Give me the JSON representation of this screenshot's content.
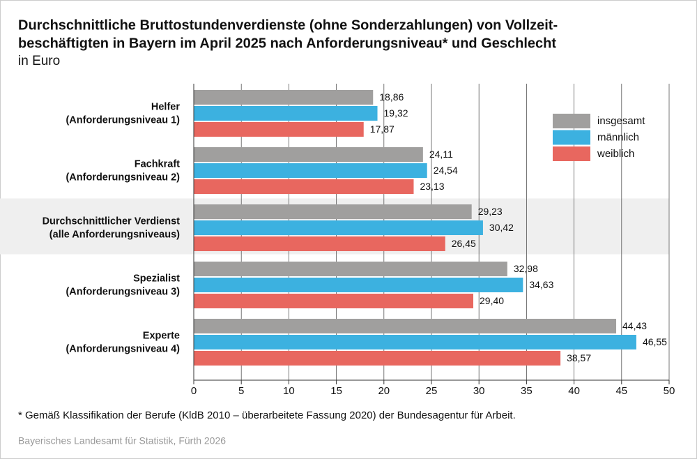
{
  "chart_data": {
    "type": "bar",
    "orientation": "horizontal",
    "title": [
      "Durchschnittliche Bruttostundenverdienste (ohne Sonderzahlungen) von Vollzeit-",
      "beschäftigten in Bayern im April 2025 nach Anforderungsniveau* und Geschlecht"
    ],
    "subtitle": "in Euro",
    "categories": [
      [
        "Helfer",
        "(Anforderungsniveau 1)"
      ],
      [
        "Fachkraft",
        "(Anforderungsniveau 2)"
      ],
      [
        "Durchschnittlicher Verdienst",
        "(alle Anforderungsniveaus)"
      ],
      [
        "Spezialist",
        "(Anforderungsniveau 3)"
      ],
      [
        "Experte",
        "(Anforderungsniveau 4)"
      ]
    ],
    "series": [
      {
        "name": "insgesamt",
        "color": "#a09f9e",
        "values": [
          18.86,
          24.11,
          29.23,
          32.98,
          44.43
        ],
        "value_labels": [
          "18,86",
          "24,11",
          "29,23",
          "32,98",
          "44,43"
        ]
      },
      {
        "name": "männlich",
        "color": "#3cb1e0",
        "values": [
          19.32,
          24.54,
          30.42,
          34.63,
          46.55
        ],
        "value_labels": [
          "19,32",
          "24,54",
          "30,42",
          "34,63",
          "46,55"
        ]
      },
      {
        "name": "weiblich",
        "color": "#e8675f",
        "values": [
          17.87,
          23.13,
          26.45,
          29.4,
          38.57
        ],
        "value_labels": [
          "17,87",
          "23,13",
          "26,45",
          "29,40",
          "38,57"
        ]
      }
    ],
    "xlim": [
      0,
      50
    ],
    "xticks": [
      0,
      5,
      10,
      15,
      20,
      25,
      30,
      35,
      40,
      45,
      50
    ],
    "grid": true,
    "highlight_category": 2,
    "legend": "upper right",
    "footnote": "* Gemäß Klassifikation der Berufe (KldB 2010 – überarbeitete Fassung 2020) der Bundesagentur für Arbeit.",
    "source": "Bayerisches Landesamt für Statistik, Fürth 2026"
  }
}
